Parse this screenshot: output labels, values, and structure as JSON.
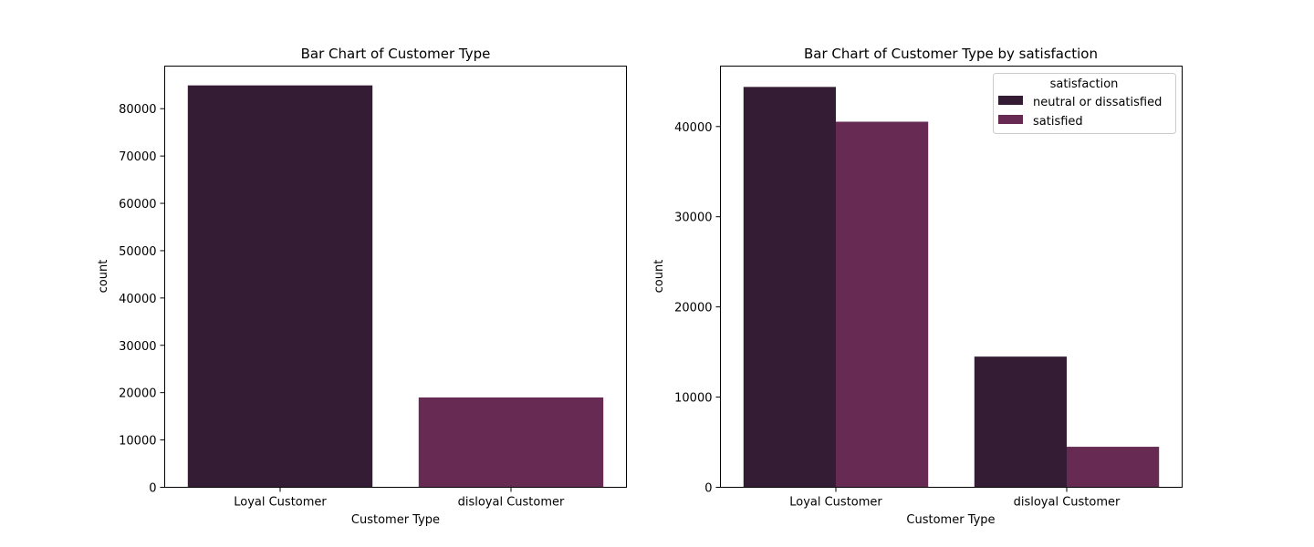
{
  "colors": {
    "series_1": "#341c35",
    "series_2": "#662a53"
  },
  "chart_data": [
    {
      "type": "bar",
      "title": "Bar Chart of Customer Type",
      "xlabel": "Customer Type",
      "ylabel": "count",
      "categories": [
        "Loyal Customer",
        "disloyal Customer"
      ],
      "values": [
        84923,
        18981
      ],
      "bar_colors": [
        "#341c35",
        "#662a53"
      ],
      "ylim": [
        0,
        89000
      ],
      "yticks": [
        0,
        10000,
        20000,
        30000,
        40000,
        50000,
        60000,
        70000,
        80000
      ],
      "ytick_labels": [
        "0",
        "10000",
        "20000",
        "30000",
        "40000",
        "50000",
        "60000",
        "70000",
        "80000"
      ],
      "grid": false
    },
    {
      "type": "bar",
      "title": "Bar Chart of Customer Type by satisfaction",
      "xlabel": "Customer Type",
      "ylabel": "count",
      "categories": [
        "Loyal Customer",
        "disloyal Customer"
      ],
      "series": [
        {
          "name": "neutral or dissatisfied",
          "values": [
            44390,
            14490
          ],
          "color": "#341c35"
        },
        {
          "name": "satisfied",
          "values": [
            40533,
            4491
          ],
          "color": "#662a53"
        }
      ],
      "legend_title": "satisfaction",
      "legend_position": "top-right",
      "ylim": [
        0,
        46700
      ],
      "yticks": [
        0,
        10000,
        20000,
        30000,
        40000
      ],
      "ytick_labels": [
        "0",
        "10000",
        "20000",
        "30000",
        "40000"
      ],
      "grid": false
    }
  ]
}
